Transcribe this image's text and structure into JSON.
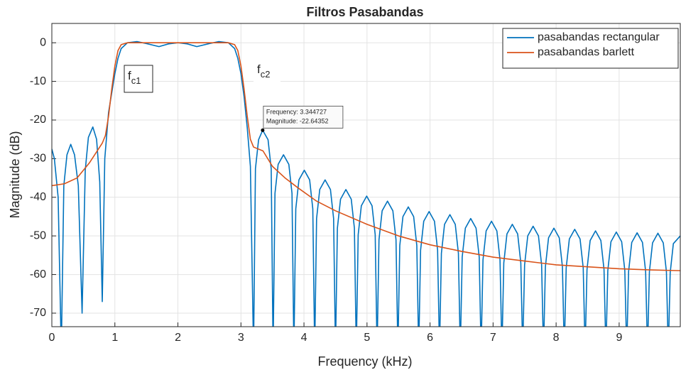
{
  "chart_data": {
    "type": "line",
    "title": "Filtros Pasabandas",
    "x_label": "Frequency (kHz)",
    "y_label": "Magnitude (dB)",
    "xlim": [
      0,
      9.97
    ],
    "ylim": [
      -73.5,
      5
    ],
    "xticks": [
      0,
      1,
      2,
      3,
      4,
      5,
      6,
      7,
      8,
      9
    ],
    "yticks": [
      0,
      -10,
      -20,
      -30,
      -40,
      -50,
      -60,
      -70
    ],
    "grid": true,
    "legend": "top-right",
    "series": [
      {
        "name": "pasabandas rectangular",
        "color": "#0072bd",
        "x": [
          0,
          0.04,
          0.1,
          0.15,
          0.19,
          0.24,
          0.3,
          0.36,
          0.42,
          0.48,
          0.53,
          0.58,
          0.65,
          0.71,
          0.76,
          0.8,
          0.84,
          0.9,
          0.96,
          1.0,
          1.05,
          1.1,
          1.2,
          1.35,
          1.5,
          1.7,
          1.85,
          2.0,
          2.15,
          2.3,
          2.5,
          2.65,
          2.8,
          2.9,
          2.95,
          3.0,
          3.05,
          3.1,
          3.15,
          3.2,
          3.23,
          3.28,
          3.345,
          3.43,
          3.48,
          3.51,
          3.54,
          3.59,
          3.675,
          3.76,
          3.81,
          3.84,
          3.87,
          3.92,
          4.005,
          4.09,
          4.14,
          4.17,
          4.2,
          4.25,
          4.335,
          4.42,
          4.47,
          4.5,
          4.53,
          4.58,
          4.665,
          4.75,
          4.8,
          4.83,
          4.86,
          4.91,
          4.995,
          5.08,
          5.13,
          5.16,
          5.19,
          5.24,
          5.325,
          5.41,
          5.46,
          5.49,
          5.52,
          5.57,
          5.655,
          5.74,
          5.79,
          5.82,
          5.85,
          5.9,
          5.985,
          6.07,
          6.12,
          6.15,
          6.18,
          6.23,
          6.315,
          6.4,
          6.45,
          6.48,
          6.51,
          6.56,
          6.645,
          6.73,
          6.78,
          6.81,
          6.84,
          6.89,
          6.975,
          7.06,
          7.11,
          7.14,
          7.17,
          7.22,
          7.305,
          7.39,
          7.44,
          7.47,
          7.5,
          7.55,
          7.635,
          7.72,
          7.77,
          7.8,
          7.83,
          7.88,
          7.965,
          8.05,
          8.1,
          8.13,
          8.16,
          8.21,
          8.295,
          8.38,
          8.43,
          8.46,
          8.49,
          8.54,
          8.625,
          8.71,
          8.76,
          8.79,
          8.82,
          8.87,
          8.955,
          9.04,
          9.09,
          9.12,
          9.15,
          9.2,
          9.285,
          9.37,
          9.42,
          9.45,
          9.48,
          9.53,
          9.615,
          9.7,
          9.75,
          9.78,
          9.81,
          9.86,
          9.97
        ],
        "values": [
          -27.5,
          -30,
          -40,
          -80,
          -37,
          -29,
          -26.3,
          -29,
          -37,
          -70,
          -33,
          -24.5,
          -21.8,
          -25,
          -36,
          -67,
          -30,
          -18,
          -12,
          -8,
          -4,
          -1.5,
          0,
          0.3,
          -0.2,
          -1,
          -0.3,
          0,
          -0.3,
          -1,
          -0.2,
          0.3,
          0,
          -1.5,
          -4,
          -8,
          -14,
          -22,
          -32,
          -80,
          -32.6,
          -25.1,
          -22.64,
          -25.1,
          -32.6,
          -80,
          -39,
          -31.5,
          -29,
          -31.5,
          -39,
          -80,
          -43,
          -35.5,
          -33,
          -35.5,
          -43,
          -80,
          -45.5,
          -38,
          -35.5,
          -38,
          -45.5,
          -80,
          -48,
          -40.5,
          -38,
          -40.5,
          -48,
          -80,
          -49.7,
          -42.2,
          -39.7,
          -42.2,
          -49.7,
          -80,
          -51,
          -43.5,
          -41,
          -43.5,
          -51,
          -80,
          -52.5,
          -45,
          -42.5,
          -45,
          -52.5,
          -80,
          -53.7,
          -46.2,
          -43.7,
          -46.2,
          -53.7,
          -80,
          -54.5,
          -47,
          -44.5,
          -47,
          -54.5,
          -80,
          -55.5,
          -48,
          -45.5,
          -48,
          -55.5,
          -80,
          -56.2,
          -48.7,
          -46.2,
          -48.7,
          -56.2,
          -80,
          -57,
          -49.5,
          -47,
          -49.5,
          -57,
          -80,
          -57.5,
          -50,
          -47.5,
          -50,
          -57.5,
          -80,
          -58,
          -50.5,
          -48,
          -50.5,
          -58,
          -80,
          -58.3,
          -50.8,
          -48.3,
          -50.8,
          -58.3,
          -80,
          -58.7,
          -51.2,
          -48.7,
          -51.2,
          -58.7,
          -80,
          -59,
          -51.5,
          -49,
          -51.5,
          -59,
          -80,
          -59.2,
          -51.7,
          -49.2,
          -51.7,
          -59.2,
          -80,
          -59.3,
          -51.8,
          -49.3,
          -51.8,
          -59.3,
          -80,
          -59.5,
          -52,
          -50
        ]
      },
      {
        "name": "pasabandas barlett",
        "color": "#d95319",
        "x": [
          0,
          0.2,
          0.4,
          0.5,
          0.6,
          0.7,
          0.8,
          0.85,
          0.9,
          0.95,
          1.0,
          1.05,
          1.1,
          1.2,
          2.0,
          2.8,
          2.9,
          2.95,
          3.0,
          3.05,
          3.1,
          3.15,
          3.2,
          3.35,
          3.5,
          3.7,
          3.9,
          4.2,
          4.5,
          5,
          5.5,
          6,
          6.5,
          7,
          7.5,
          8,
          8.5,
          9,
          9.5,
          9.97
        ],
        "values": [
          -37,
          -36.5,
          -35,
          -33,
          -31,
          -28.5,
          -26,
          -24,
          -19,
          -12,
          -6,
          -2,
          -0.5,
          0,
          0,
          0,
          -0.5,
          -2,
          -6,
          -12,
          -19,
          -25,
          -27,
          -28,
          -32,
          -35,
          -37.5,
          -41,
          -43.5,
          -47,
          -50,
          -52.3,
          -54,
          -55.5,
          -56.5,
          -57.5,
          -58,
          -58.5,
          -58.8,
          -59
        ]
      }
    ],
    "annotations": [
      {
        "text": "f",
        "subscript": "c1"
      },
      {
        "text": "f",
        "subscript": "c2"
      }
    ],
    "datatip": {
      "x": 3.344727,
      "y": -22.64352,
      "lines": [
        "Frequency: 3.344727",
        "Magnitude: -22.64352"
      ]
    }
  }
}
